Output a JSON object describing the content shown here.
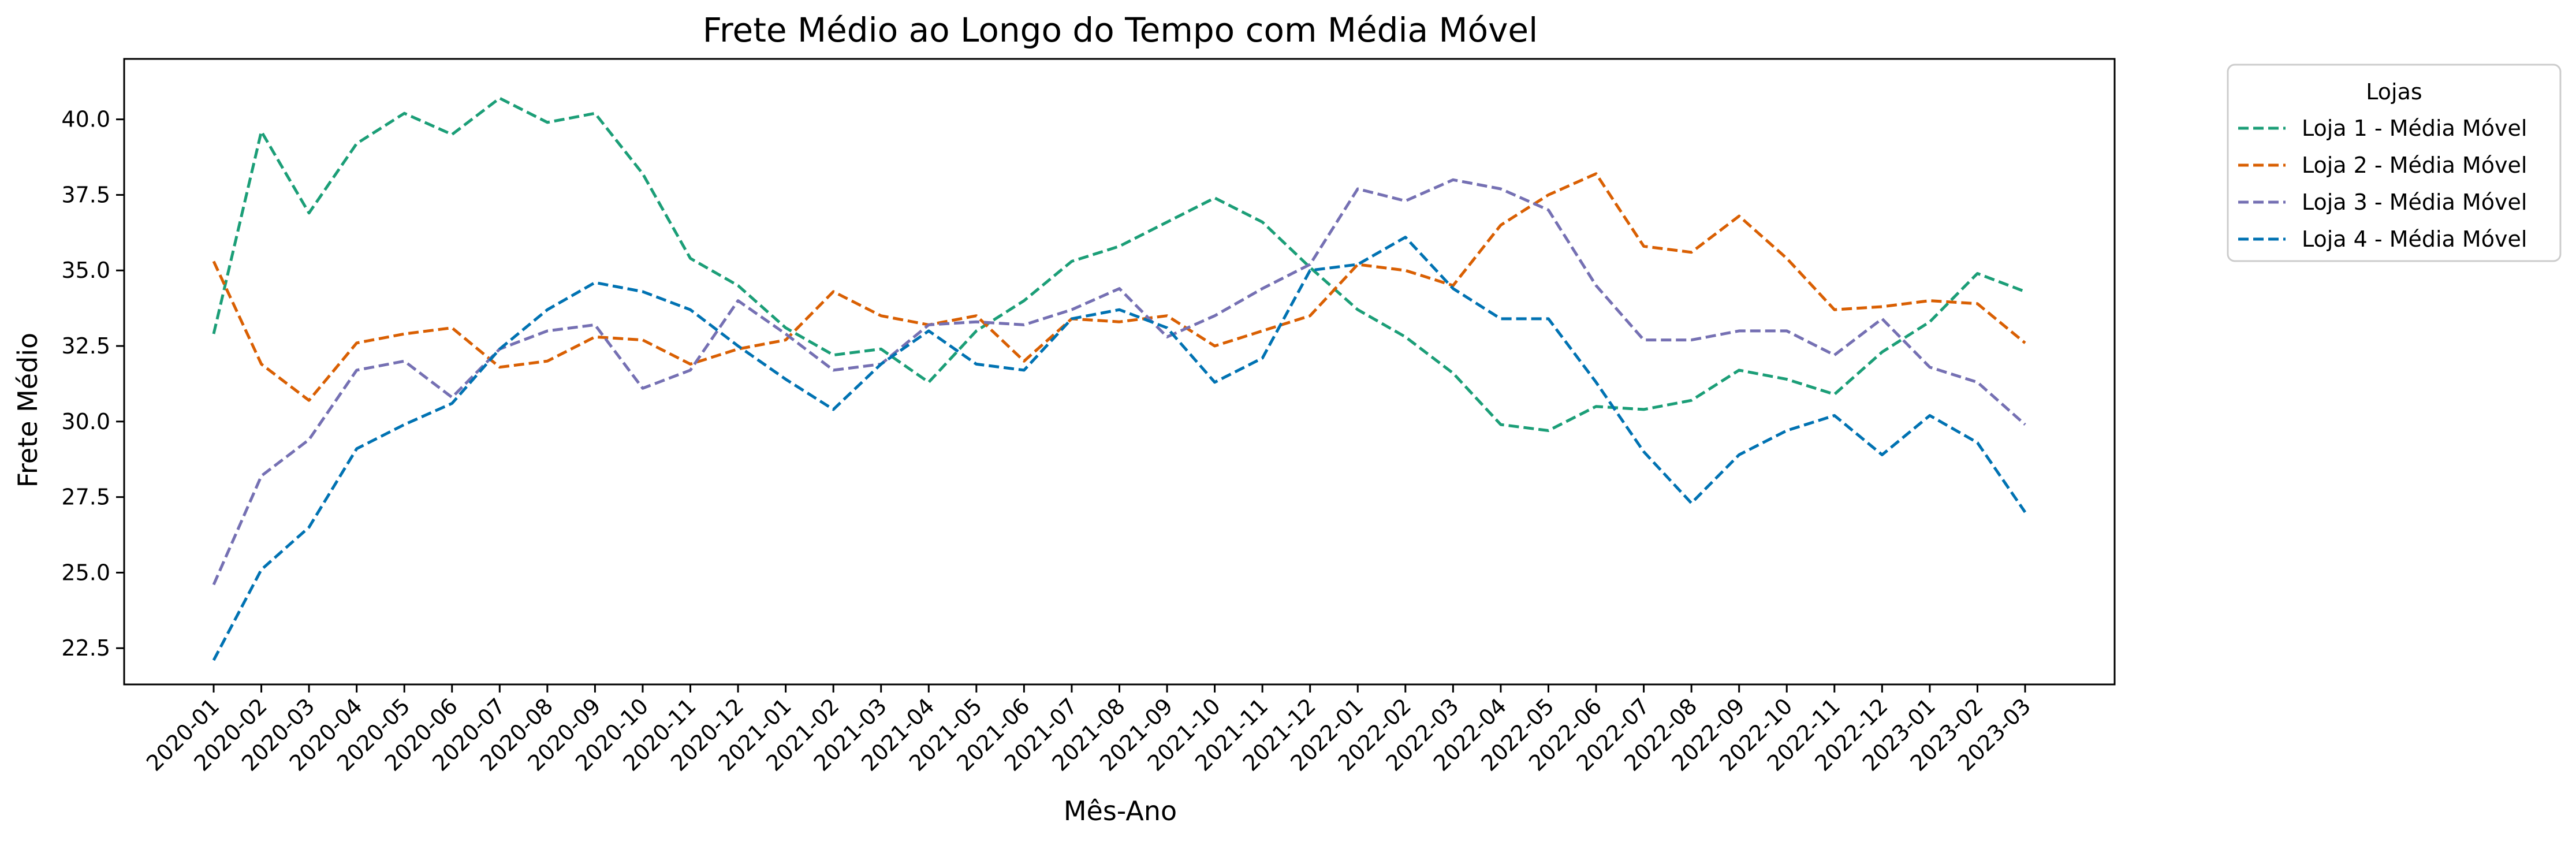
{
  "chart_data": {
    "type": "line",
    "title": "Frete Médio ao Longo do Tempo com Média Móvel",
    "xlabel": "Mês-Ano",
    "ylabel": "Frete Médio",
    "ylim": [
      21.3,
      42.0
    ],
    "yticks": [
      "22.5",
      "25.0",
      "27.5",
      "30.0",
      "32.5",
      "35.0",
      "37.5",
      "40.0"
    ],
    "grid": false,
    "legend": {
      "title": "Lojas",
      "placement": "outside-top-right"
    },
    "categories": [
      "2020-01",
      "2020-02",
      "2020-03",
      "2020-04",
      "2020-05",
      "2020-06",
      "2020-07",
      "2020-08",
      "2020-09",
      "2020-10",
      "2020-11",
      "2020-12",
      "2021-01",
      "2021-02",
      "2021-03",
      "2021-04",
      "2021-05",
      "2021-06",
      "2021-07",
      "2021-08",
      "2021-09",
      "2021-10",
      "2021-11",
      "2021-12",
      "2022-01",
      "2022-02",
      "2022-03",
      "2022-04",
      "2022-05",
      "2022-06",
      "2022-07",
      "2022-08",
      "2022-09",
      "2022-10",
      "2022-11",
      "2022-12",
      "2023-01",
      "2023-02",
      "2023-03"
    ],
    "series": [
      {
        "name": "Loja 1 - Média Móvel",
        "color": "#1b9e77",
        "values": [
          32.9,
          39.6,
          36.9,
          39.2,
          40.2,
          39.5,
          40.7,
          39.9,
          40.2,
          38.2,
          35.4,
          34.5,
          33.1,
          32.2,
          32.4,
          31.3,
          33.0,
          34.0,
          35.3,
          35.8,
          36.6,
          37.4,
          36.6,
          35.1,
          33.7,
          32.8,
          31.6,
          29.9,
          29.7,
          30.5,
          30.4,
          30.7,
          31.7,
          31.4,
          30.9,
          32.3,
          33.3,
          34.9,
          34.3
        ]
      },
      {
        "name": "Loja 2 - Média Móvel",
        "color": "#d95f02",
        "values": [
          35.3,
          31.9,
          30.7,
          32.6,
          32.9,
          33.1,
          31.8,
          32.0,
          32.8,
          32.7,
          31.9,
          32.4,
          32.7,
          34.3,
          33.5,
          33.2,
          33.5,
          32.0,
          33.4,
          33.3,
          33.5,
          32.5,
          33.0,
          33.5,
          35.2,
          35.0,
          34.5,
          36.5,
          37.5,
          38.2,
          35.8,
          35.6,
          36.8,
          35.4,
          33.7,
          33.8,
          34.0,
          33.9,
          32.6
        ]
      },
      {
        "name": "Loja 3 - Média Móvel",
        "color": "#7570b3",
        "values": [
          24.6,
          28.2,
          29.4,
          31.7,
          32.0,
          30.8,
          32.4,
          33.0,
          33.2,
          31.1,
          31.7,
          34.0,
          32.9,
          31.7,
          31.9,
          33.2,
          33.3,
          33.2,
          33.7,
          34.4,
          32.8,
          33.5,
          34.4,
          35.2,
          37.7,
          37.3,
          38.0,
          37.7,
          37.0,
          34.5,
          32.7,
          32.7,
          33.0,
          33.0,
          32.2,
          33.4,
          31.8,
          31.3,
          29.9
        ]
      },
      {
        "name": "Loja 4 - Média Móvel",
        "color": "#0072b2",
        "values": [
          22.1,
          25.1,
          26.5,
          29.1,
          29.9,
          30.6,
          32.4,
          33.7,
          34.6,
          34.3,
          33.7,
          32.5,
          31.4,
          30.4,
          31.9,
          33.0,
          31.9,
          31.7,
          33.4,
          33.7,
          33.1,
          31.3,
          32.1,
          35.0,
          35.2,
          36.1,
          34.4,
          33.4,
          33.4,
          31.3,
          29.0,
          27.3,
          28.9,
          29.7,
          30.2,
          28.9,
          30.2,
          29.3,
          27.0
        ]
      }
    ]
  }
}
